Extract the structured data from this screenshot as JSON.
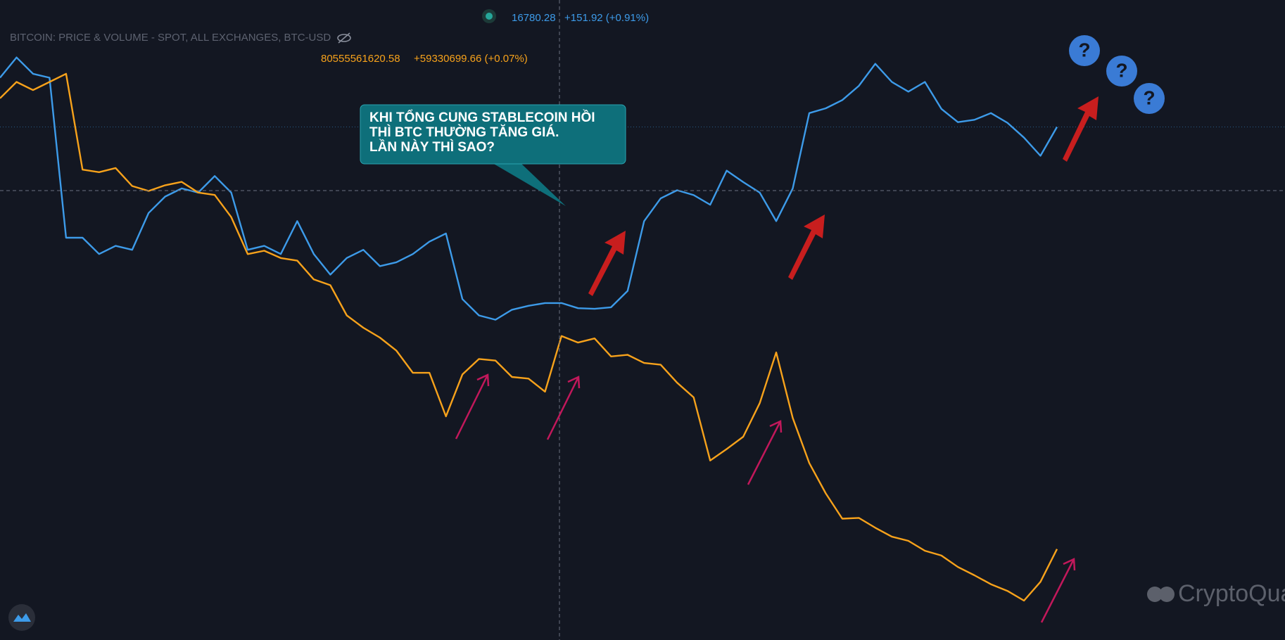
{
  "chart_data": {
    "type": "line",
    "title": "BITCOIN: PRICE & VOLUME - SPOT, ALL EXCHANGES, BTC-USD",
    "ylim": [
      15084,
      17200
    ],
    "y2lim": [
      79985000000,
      84000000000
    ],
    "series": [
      {
        "color": "#3d9be9",
        "axis": "y",
        "last_value": 16780.28,
        "change_label": "+151.92 (+0.91%)",
        "values": [
          16943,
          17010,
          16956,
          16943,
          16414,
          16414,
          16360,
          16387,
          16374,
          16496,
          16550,
          16577,
          16563,
          16618,
          16563,
          16374,
          16387,
          16360,
          16469,
          16360,
          16292,
          16347,
          16374,
          16320,
          16333,
          16360,
          16401,
          16428,
          16211,
          16157,
          16143,
          16176,
          16189,
          16198,
          16198,
          16181,
          16179,
          16184,
          16238,
          16469,
          16544,
          16571,
          16555,
          16523,
          16636,
          16598,
          16563,
          16469,
          16577,
          16826,
          16842,
          16869,
          16916,
          16989,
          16929,
          16897,
          16929,
          16840,
          16796,
          16804,
          16826,
          16794,
          16745,
          16685,
          16780.28
        ]
      },
      {
        "color": "#f7a21b",
        "axis": "y2",
        "last_value": 80555561620.58,
        "change_label": "+59330699.66 (+0.07%)",
        "values": [
          83383000000,
          83486000000,
          83435000000,
          83486000000,
          83537000000,
          82936000000,
          82920000000,
          82946000000,
          82833000000,
          82802000000,
          82838000000,
          82859000000,
          82792000000,
          82777000000,
          82638000000,
          82406000000,
          82427000000,
          82381000000,
          82365000000,
          82247000000,
          82211000000,
          82021000000,
          81944000000,
          81882000000,
          81800000000,
          81661000000,
          81661000000,
          81388000000,
          81651000000,
          81748000000,
          81738000000,
          81635000000,
          81625000000,
          81543000000,
          81892000000,
          81851000000,
          81877000000,
          81764000000,
          81774000000,
          81723000000,
          81712000000,
          81599000000,
          81507000000,
          81111000000,
          81183000000,
          81260000000,
          81471000000,
          81789000000,
          81378000000,
          81095000000,
          80905000000,
          80746000000,
          80751000000,
          80689000000,
          80633000000,
          80607000000,
          80545000000,
          80515000000,
          80443000000,
          80391000000,
          80335000000,
          80293000000,
          80232000000,
          80350000000,
          80555561620.58
        ]
      }
    ],
    "annotation": [
      "KHI TỔNG CUNG STABLECOIN HỒI",
      "THÌ BTC THƯỜNG TĂNG GIÁ.",
      "LẦN NÀY THÌ SAO?"
    ],
    "question_marks": [
      "?",
      "?",
      "?"
    ],
    "watermark": "CryptoQuant"
  }
}
